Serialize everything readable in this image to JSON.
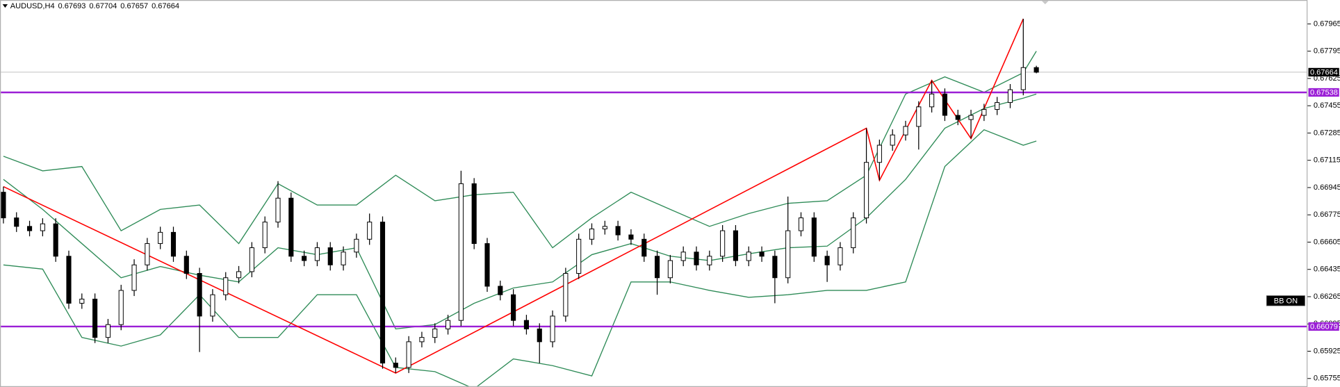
{
  "chart_data": {
    "type": "candlestick",
    "title": "AUDUSD,H4",
    "open": [
      0.66916,
      0.66756,
      0.66703,
      0.66676,
      0.66719,
      0.66517,
      0.66224,
      0.6625,
      0.66011,
      0.66091,
      0.66304,
      0.66463,
      0.66596,
      0.66666,
      0.66517,
      0.6641,
      0.66144,
      0.66277,
      0.66383,
      0.66421,
      0.6657,
      0.6673,
      0.66879,
      0.66517,
      0.6649,
      0.6657,
      0.66463,
      0.66543,
      0.66623,
      0.6673,
      0.65851,
      0.65824,
      0.65984,
      0.66011,
      0.66064,
      0.66117,
      0.66969,
      0.66596,
      0.6633,
      0.66277,
      0.66117,
      0.66064,
      0.65984,
      0.66144,
      0.6641,
      0.66623,
      0.66687,
      0.66703,
      0.6665,
      0.66623,
      0.66517,
      0.66383,
      0.6649,
      0.66543,
      0.66463,
      0.66517,
      0.66676,
      0.6649,
      0.66543,
      0.66517,
      0.66383,
      0.66676,
      0.66756,
      0.66517,
      0.66463,
      0.6657,
      0.66756,
      0.67102,
      0.67209,
      0.67273,
      0.67326,
      0.67448,
      0.67528,
      0.67395,
      0.67369,
      0.67395,
      0.67432,
      0.67475,
      0.67555,
      0.67693
    ],
    "high": [
      0.66951,
      0.66791,
      0.66738,
      0.66754,
      0.66754,
      0.66552,
      0.66285,
      0.66285,
      0.66126,
      0.66339,
      0.66498,
      0.66631,
      0.66701,
      0.66701,
      0.66552,
      0.66445,
      0.66312,
      0.66418,
      0.66456,
      0.66605,
      0.66765,
      0.66985,
      0.66914,
      0.66552,
      0.66605,
      0.66605,
      0.66578,
      0.66658,
      0.66783,
      0.66765,
      0.65886,
      0.66019,
      0.66046,
      0.66099,
      0.66152,
      0.6705,
      0.67004,
      0.66631,
      0.66365,
      0.66312,
      0.66152,
      0.66099,
      0.66179,
      0.66445,
      0.66658,
      0.66722,
      0.66738,
      0.66738,
      0.66685,
      0.66658,
      0.66552,
      0.66525,
      0.66578,
      0.66578,
      0.66552,
      0.66711,
      0.66711,
      0.66578,
      0.66578,
      0.66552,
      0.66889,
      0.66791,
      0.66791,
      0.66552,
      0.66605,
      0.66791,
      0.67315,
      0.67244,
      0.67308,
      0.67361,
      0.67483,
      0.67613,
      0.67563,
      0.6743,
      0.6743,
      0.67467,
      0.6751,
      0.6759,
      0.67997,
      0.67704
    ],
    "low": [
      0.66721,
      0.66668,
      0.66641,
      0.66641,
      0.66482,
      0.66189,
      0.66189,
      0.65976,
      0.65976,
      0.66056,
      0.66269,
      0.66428,
      0.66561,
      0.66482,
      0.66375,
      0.6592,
      0.66109,
      0.66242,
      0.66348,
      0.66386,
      0.66535,
      0.66695,
      0.66482,
      0.66455,
      0.66455,
      0.66428,
      0.66428,
      0.66508,
      0.66588,
      0.65816,
      0.65789,
      0.65789,
      0.65949,
      0.65976,
      0.66029,
      0.66082,
      0.66561,
      0.66295,
      0.66242,
      0.66082,
      0.66029,
      0.65851,
      0.65949,
      0.66109,
      0.66375,
      0.66588,
      0.66652,
      0.66615,
      0.66588,
      0.66482,
      0.66277,
      0.66348,
      0.66455,
      0.66428,
      0.66428,
      0.66482,
      0.66455,
      0.66455,
      0.66482,
      0.66224,
      0.66348,
      0.66641,
      0.66482,
      0.66357,
      0.66428,
      0.66535,
      0.66721,
      0.6699,
      0.67174,
      0.67238,
      0.67182,
      0.67413,
      0.6736,
      0.67334,
      0.67251,
      0.6736,
      0.67397,
      0.6744,
      0.6752,
      0.67657
    ],
    "close": [
      0.66756,
      0.66703,
      0.66676,
      0.66719,
      0.66517,
      0.66224,
      0.6625,
      0.66011,
      0.66091,
      0.66304,
      0.66463,
      0.66596,
      0.66666,
      0.66517,
      0.6641,
      0.66144,
      0.66277,
      0.66383,
      0.66421,
      0.6657,
      0.6673,
      0.66879,
      0.66517,
      0.6649,
      0.6657,
      0.66463,
      0.66543,
      0.66623,
      0.6673,
      0.65851,
      0.65824,
      0.65984,
      0.66011,
      0.66064,
      0.66117,
      0.66969,
      0.66596,
      0.6633,
      0.66277,
      0.66117,
      0.66064,
      0.65984,
      0.66144,
      0.6641,
      0.66623,
      0.66687,
      0.66703,
      0.6665,
      0.66623,
      0.66517,
      0.66383,
      0.6649,
      0.66543,
      0.66463,
      0.66517,
      0.66676,
      0.6649,
      0.66543,
      0.66517,
      0.66383,
      0.66676,
      0.66756,
      0.66517,
      0.66463,
      0.6657,
      0.66756,
      0.67102,
      0.67209,
      0.67273,
      0.67326,
      0.67448,
      0.67528,
      0.67395,
      0.67369,
      0.67395,
      0.67432,
      0.67475,
      0.67555,
      0.67693,
      0.67664
    ],
    "ylim": [
      0.65702,
      0.68114
    ],
    "yticks": [
      0.67965,
      0.67795,
      0.67625,
      0.67455,
      0.67285,
      0.67115,
      0.66945,
      0.66775,
      0.66605,
      0.66435,
      0.66265,
      0.66095,
      0.65925,
      0.65755
    ],
    "bands": {
      "color": "#2e8b57",
      "index": [
        0,
        3,
        6,
        9,
        12,
        15,
        18,
        21,
        24,
        27,
        30,
        33,
        36,
        39,
        42,
        45,
        48,
        51,
        54,
        57,
        60,
        63,
        66,
        69,
        72,
        75,
        78,
        79
      ],
      "upper": [
        0.6714,
        0.67049,
        0.67076,
        0.66676,
        0.66809,
        0.66836,
        0.66596,
        0.66969,
        0.66836,
        0.66836,
        0.67022,
        0.66863,
        0.669,
        0.66916,
        0.6657,
        0.66756,
        0.66916,
        0.66809,
        0.66703,
        0.66783,
        0.66847,
        0.66863,
        0.67022,
        0.67528,
        0.67635,
        0.67539,
        0.67661,
        0.67795
      ],
      "middle": [
        0.66996,
        0.66809,
        0.66596,
        0.66383,
        0.66453,
        0.66399,
        0.66357,
        0.6657,
        0.66527,
        0.6657,
        0.66064,
        0.66091,
        0.66224,
        0.66319,
        0.66357,
        0.66527,
        0.66596,
        0.66517,
        0.6649,
        0.66532,
        0.6657,
        0.6658,
        0.66756,
        0.66996,
        0.67315,
        0.67438,
        0.67502,
        0.67528
      ],
      "lower": [
        0.66463,
        0.66437,
        0.66011,
        0.65957,
        0.66027,
        0.66277,
        0.66011,
        0.66011,
        0.66277,
        0.66277,
        0.65824,
        0.65798,
        0.65691,
        0.65877,
        0.65835,
        0.65771,
        0.66357,
        0.66357,
        0.66304,
        0.66261,
        0.66277,
        0.66304,
        0.66304,
        0.66357,
        0.67076,
        0.67305,
        0.67209,
        0.67235
      ]
    },
    "zigzag": {
      "color": "#ff0000",
      "index": [
        0,
        30,
        66,
        67,
        71,
        74,
        78
      ],
      "price": [
        0.66951,
        0.65789,
        0.67315,
        0.6699,
        0.67613,
        0.67251,
        0.67997
      ]
    },
    "levels": [
      0.67538,
      0.66079
    ],
    "level_color": "#9b1fd6",
    "indicator_label": "BB ON"
  }
}
